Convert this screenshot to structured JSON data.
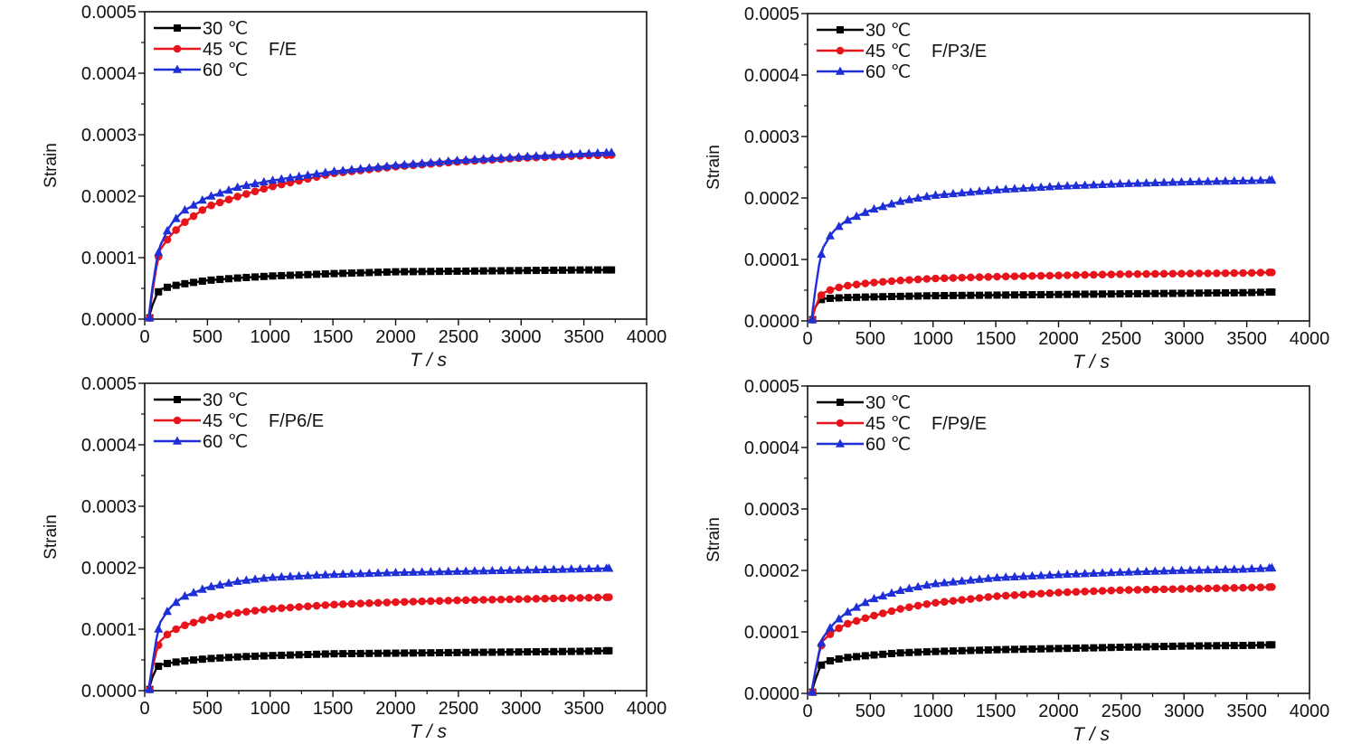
{
  "colors": {
    "30": "#000000",
    "45": "#e8141c",
    "60": "#1f2fd8"
  },
  "chart_data": [
    {
      "type": "line",
      "annotation": "F/E",
      "xlabel": "T / s",
      "ylabel": "Strain",
      "xlim": [
        0,
        4000
      ],
      "ylim": [
        0,
        0.0005
      ],
      "xticks": [
        "0",
        "500",
        "1000",
        "1500",
        "2000",
        "2500",
        "3000",
        "3500",
        "4000"
      ],
      "yticks": [
        "0.0000",
        "0.0001",
        "0.0002",
        "0.0003",
        "0.0004",
        "0.0005"
      ],
      "legend_position": "top-left",
      "series": [
        {
          "name": "30 ℃",
          "marker": "square",
          "color": "#000000",
          "x": [
            0,
            40,
            70,
            120,
            200,
            300,
            500,
            750,
            1000,
            1500,
            2000,
            2500,
            3000,
            3500,
            3720
          ],
          "y": [
            0,
            2e-06,
            3e-05,
            4.8e-05,
            5.3e-05,
            5.7e-05,
            6.3e-05,
            6.7e-05,
            7e-05,
            7.4e-05,
            7.7e-05,
            7.8e-05,
            7.9e-05,
            8e-05,
            8e-05
          ]
        },
        {
          "name": "45 ℃",
          "marker": "circle",
          "color": "#e8141c",
          "x": [
            0,
            40,
            70,
            120,
            200,
            300,
            500,
            750,
            1000,
            1500,
            2000,
            2500,
            3000,
            3500,
            3720
          ],
          "y": [
            0,
            2e-06,
            6e-05,
            0.000112,
            0.000135,
            0.000155,
            0.000183,
            0.0002,
            0.000215,
            0.000237,
            0.000248,
            0.000256,
            0.000262,
            0.000266,
            0.000267
          ]
        },
        {
          "name": "60 ℃",
          "marker": "triangle",
          "color": "#1f2fd8",
          "x": [
            0,
            40,
            70,
            120,
            200,
            300,
            500,
            750,
            1000,
            1500,
            2000,
            2500,
            3000,
            3500,
            3720
          ],
          "y": [
            0,
            2e-06,
            7e-05,
            0.000118,
            0.000152,
            0.000175,
            0.000198,
            0.000215,
            0.000225,
            0.00024,
            0.00025,
            0.000258,
            0.000264,
            0.000269,
            0.000271
          ]
        }
      ]
    },
    {
      "type": "line",
      "annotation": "F/P3/E",
      "xlabel": "T / s",
      "ylabel": "Strain",
      "xlim": [
        0,
        4000
      ],
      "ylim": [
        0,
        0.0005
      ],
      "xticks": [
        "0",
        "500",
        "1000",
        "1500",
        "2000",
        "2500",
        "3000",
        "3500",
        "4000"
      ],
      "yticks": [
        "0.0000",
        "0.0001",
        "0.0002",
        "0.0003",
        "0.0004",
        "0.0005"
      ],
      "legend_position": "top-left",
      "series": [
        {
          "name": "30 ℃",
          "marker": "square",
          "color": "#000000",
          "x": [
            0,
            40,
            70,
            120,
            200,
            300,
            500,
            750,
            1000,
            1500,
            2000,
            2500,
            3000,
            3500,
            3700
          ],
          "y": [
            0,
            2e-06,
            3e-05,
            3.6e-05,
            3.7e-05,
            3.8e-05,
            3.9e-05,
            4e-05,
            4.1e-05,
            4.2e-05,
            4.3e-05,
            4.4e-05,
            4.5e-05,
            4.6e-05,
            4.7e-05
          ]
        },
        {
          "name": "45 ℃",
          "marker": "circle",
          "color": "#e8141c",
          "x": [
            0,
            40,
            70,
            120,
            200,
            300,
            500,
            750,
            1000,
            1500,
            2000,
            2500,
            3000,
            3500,
            3700
          ],
          "y": [
            0,
            2e-06,
            3e-05,
            4.5e-05,
            5.2e-05,
            5.7e-05,
            6.2e-05,
            6.6e-05,
            6.9e-05,
            7.2e-05,
            7.4e-05,
            7.6e-05,
            7.7e-05,
            7.8e-05,
            7.9e-05
          ]
        },
        {
          "name": "60 ℃",
          "marker": "triangle",
          "color": "#1f2fd8",
          "x": [
            0,
            40,
            70,
            120,
            200,
            300,
            500,
            750,
            1000,
            1500,
            2000,
            2500,
            3000,
            3500,
            3700
          ],
          "y": [
            0,
            2e-06,
            7e-05,
            0.000118,
            0.000145,
            0.000162,
            0.00018,
            0.000195,
            0.000204,
            0.000213,
            0.000219,
            0.000223,
            0.000226,
            0.000228,
            0.000229
          ]
        }
      ]
    },
    {
      "type": "line",
      "annotation": "F/P6/E",
      "xlabel": "T / s",
      "ylabel": "Strain",
      "xlim": [
        0,
        4000
      ],
      "ylim": [
        0,
        0.0005
      ],
      "xticks": [
        "0",
        "500",
        "1000",
        "1500",
        "2000",
        "2500",
        "3000",
        "3500",
        "4000"
      ],
      "yticks": [
        "0.0000",
        "0.0001",
        "0.0002",
        "0.0003",
        "0.0004",
        "0.0005"
      ],
      "legend_position": "top-left",
      "series": [
        {
          "name": "30 ℃",
          "marker": "square",
          "color": "#000000",
          "x": [
            0,
            40,
            70,
            120,
            200,
            300,
            500,
            750,
            1000,
            1500,
            2000,
            2500,
            3000,
            3500,
            3700
          ],
          "y": [
            0,
            2e-06,
            3e-05,
            4.2e-05,
            4.5e-05,
            4.8e-05,
            5.2e-05,
            5.5e-05,
            5.7e-05,
            6e-05,
            6.1e-05,
            6.2e-05,
            6.3e-05,
            6.4e-05,
            6.5e-05
          ]
        },
        {
          "name": "45 ℃",
          "marker": "circle",
          "color": "#e8141c",
          "x": [
            0,
            40,
            70,
            120,
            200,
            300,
            500,
            750,
            1000,
            1500,
            2000,
            2500,
            3000,
            3500,
            3700
          ],
          "y": [
            0,
            2e-06,
            5e-05,
            8e-05,
            9.5e-05,
            0.000105,
            0.000118,
            0.000127,
            0.000133,
            0.00014,
            0.000144,
            0.000147,
            0.000149,
            0.000151,
            0.000152
          ]
        },
        {
          "name": "60 ℃",
          "marker": "triangle",
          "color": "#1f2fd8",
          "x": [
            0,
            40,
            70,
            120,
            200,
            300,
            500,
            750,
            1000,
            1500,
            2000,
            2500,
            3000,
            3500,
            3700
          ],
          "y": [
            0,
            2e-06,
            6e-05,
            0.00011,
            0.000135,
            0.000152,
            0.000168,
            0.000178,
            0.000184,
            0.000189,
            0.000192,
            0.000194,
            0.000196,
            0.000198,
            0.000199
          ]
        }
      ]
    },
    {
      "type": "line",
      "annotation": "F/P9/E",
      "xlabel": "T / s",
      "ylabel": "Strain",
      "xlim": [
        0,
        4000
      ],
      "ylim": [
        0,
        0.0005
      ],
      "xticks": [
        "0",
        "500",
        "1000",
        "1500",
        "2000",
        "2500",
        "3000",
        "3500",
        "4000"
      ],
      "yticks": [
        "0.0000",
        "0.0001",
        "0.0002",
        "0.0003",
        "0.0004",
        "0.0005"
      ],
      "legend_position": "top-left",
      "series": [
        {
          "name": "30 ℃",
          "marker": "square",
          "color": "#000000",
          "x": [
            0,
            40,
            70,
            120,
            200,
            300,
            500,
            750,
            1000,
            1500,
            2000,
            2500,
            3000,
            3500,
            3700
          ],
          "y": [
            0,
            2e-06,
            3e-05,
            5e-05,
            5.4e-05,
            5.8e-05,
            6.2e-05,
            6.6e-05,
            6.8e-05,
            7.1e-05,
            7.3e-05,
            7.5e-05,
            7.7e-05,
            7.8e-05,
            7.9e-05
          ]
        },
        {
          "name": "45 ℃",
          "marker": "circle",
          "color": "#e8141c",
          "x": [
            0,
            40,
            70,
            120,
            200,
            300,
            500,
            750,
            1000,
            1500,
            2000,
            2500,
            3000,
            3500,
            3700
          ],
          "y": [
            0,
            2e-06,
            5e-05,
            8.5e-05,
            0.0001,
            0.000112,
            0.000125,
            0.000138,
            0.000147,
            0.000158,
            0.000164,
            0.000168,
            0.00017,
            0.000172,
            0.000173
          ]
        },
        {
          "name": "60 ℃",
          "marker": "triangle",
          "color": "#1f2fd8",
          "x": [
            0,
            40,
            70,
            120,
            200,
            300,
            500,
            750,
            1000,
            1500,
            2000,
            2500,
            3000,
            3500,
            3700
          ],
          "y": [
            0,
            2e-06,
            5e-05,
            9e-05,
            0.000112,
            0.00013,
            0.000152,
            0.000168,
            0.000178,
            0.000188,
            0.000193,
            0.000197,
            0.0002,
            0.000202,
            0.000204
          ]
        }
      ]
    }
  ]
}
